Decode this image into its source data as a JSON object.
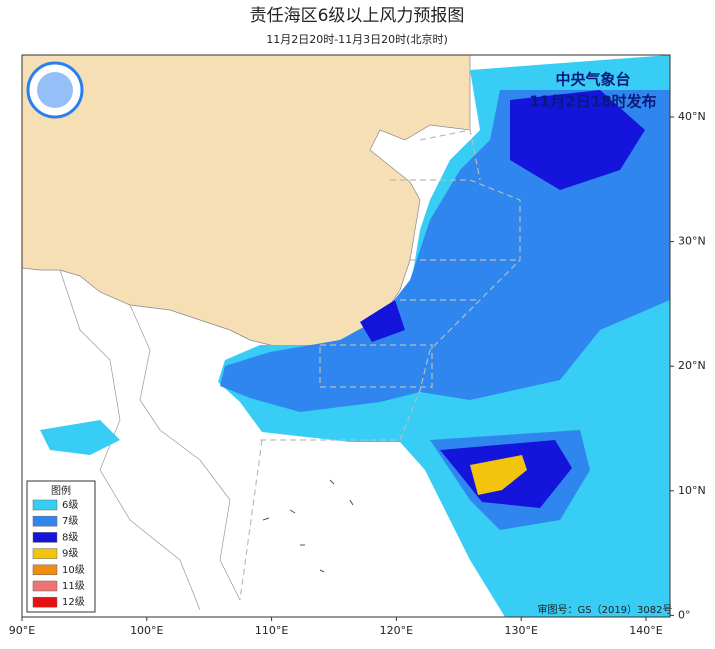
{
  "header": {
    "title": "责任海区6级以上风力预报图",
    "subtitle": "11月2日20时-11月3日20时(北京时)"
  },
  "issuer": {
    "agency": "中央气象台",
    "issued": "11月2日18时发布"
  },
  "legend": {
    "title": "图例",
    "items": [
      {
        "label": "6级",
        "color": "#38cdf5"
      },
      {
        "label": "7级",
        "color": "#2f86ee"
      },
      {
        "label": "8级",
        "color": "#1414dc"
      },
      {
        "label": "9级",
        "color": "#f2c40c"
      },
      {
        "label": "10级",
        "color": "#f08c10"
      },
      {
        "label": "11级",
        "color": "#f07272"
      },
      {
        "label": "12级",
        "color": "#e81010"
      }
    ]
  },
  "axes": {
    "longitude": [
      "90°E",
      "100°E",
      "110°E",
      "120°E",
      "130°E",
      "140°E"
    ],
    "latitude": [
      "40°N",
      "30°N",
      "20°N",
      "10°N",
      "0°"
    ]
  },
  "approval": "审图号：GS（2019）3082号"
}
